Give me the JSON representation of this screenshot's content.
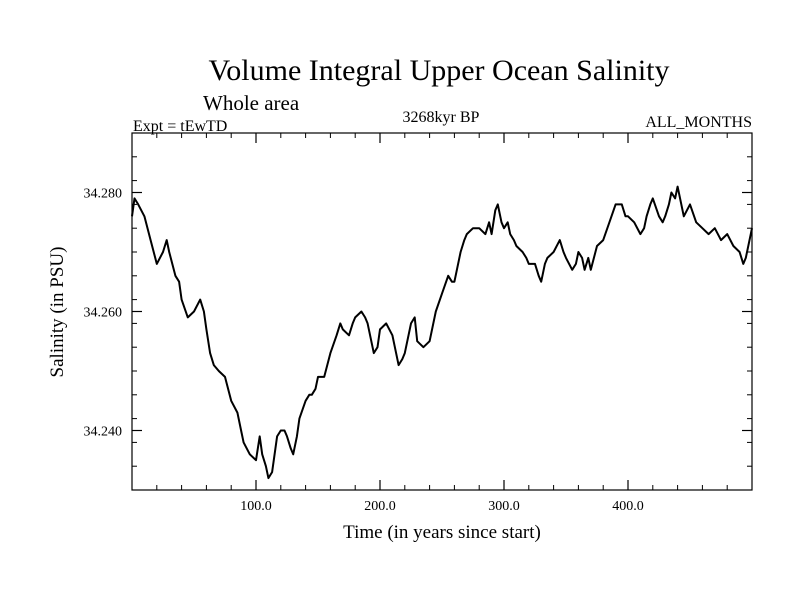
{
  "chart_data": {
    "type": "line",
    "title": "Volume Integral Upper Ocean Salinity",
    "subtitle": "Whole area",
    "expt_label": "Expt = tEwTD",
    "center_label": "3268kyr BP",
    "right_label": "ALL_MONTHS",
    "xlabel": "Time (in years since start)",
    "ylabel": "Salinity (in PSU)",
    "xlim": [
      0,
      500
    ],
    "ylim": [
      34.23,
      34.29
    ],
    "x_ticks": [
      {
        "value": 100,
        "label": "100.0"
      },
      {
        "value": 200,
        "label": "200.0"
      },
      {
        "value": 300,
        "label": "300.0"
      },
      {
        "value": 400,
        "label": "400.0"
      }
    ],
    "y_ticks": [
      {
        "value": 34.24,
        "label": "34.240"
      },
      {
        "value": 34.26,
        "label": "34.260"
      },
      {
        "value": 34.28,
        "label": "34.280"
      }
    ],
    "grid": false,
    "series": [
      {
        "name": "Salinity",
        "x": [
          0,
          2,
          5,
          10,
          15,
          20,
          25,
          28,
          30,
          35,
          38,
          40,
          45,
          50,
          55,
          58,
          60,
          63,
          66,
          70,
          75,
          80,
          85,
          88,
          90,
          95,
          100,
          103,
          105,
          108,
          110,
          113,
          115,
          117,
          120,
          123,
          125,
          128,
          130,
          133,
          135,
          140,
          143,
          145,
          148,
          150,
          155,
          160,
          165,
          168,
          170,
          175,
          178,
          180,
          185,
          188,
          190,
          195,
          198,
          200,
          205,
          210,
          213,
          215,
          218,
          220,
          225,
          228,
          230,
          235,
          240,
          245,
          250,
          255,
          258,
          260,
          265,
          268,
          270,
          275,
          280,
          285,
          288,
          290,
          293,
          295,
          298,
          300,
          303,
          305,
          308,
          310,
          315,
          318,
          320,
          325,
          328,
          330,
          333,
          335,
          340,
          345,
          348,
          350,
          355,
          358,
          360,
          363,
          365,
          368,
          370,
          375,
          380,
          385,
          390,
          395,
          398,
          400,
          405,
          410,
          413,
          415,
          418,
          420,
          425,
          428,
          430,
          433,
          435,
          438,
          440,
          445,
          450,
          455,
          460,
          465,
          470,
          475,
          480,
          485,
          490,
          493,
          495,
          500
        ],
        "values": [
          34.276,
          34.279,
          34.278,
          34.276,
          34.272,
          34.268,
          34.27,
          34.272,
          34.27,
          34.266,
          34.265,
          34.262,
          34.259,
          34.26,
          34.262,
          34.26,
          34.257,
          34.253,
          34.251,
          34.25,
          34.249,
          34.245,
          34.243,
          34.24,
          34.238,
          34.236,
          34.235,
          34.239,
          34.236,
          34.234,
          34.232,
          34.233,
          34.236,
          34.239,
          34.24,
          34.24,
          34.239,
          34.237,
          34.236,
          34.239,
          34.242,
          34.245,
          34.246,
          34.246,
          34.247,
          34.249,
          34.249,
          34.253,
          34.256,
          34.258,
          34.257,
          34.256,
          34.258,
          34.259,
          34.26,
          34.259,
          34.258,
          34.253,
          34.254,
          34.257,
          34.258,
          34.256,
          34.253,
          34.251,
          34.252,
          34.253,
          34.258,
          34.259,
          34.255,
          34.254,
          34.255,
          34.26,
          34.263,
          34.266,
          34.265,
          34.265,
          34.27,
          34.272,
          34.273,
          34.274,
          34.274,
          34.273,
          34.275,
          34.273,
          34.277,
          34.278,
          34.275,
          34.274,
          34.275,
          34.273,
          34.272,
          34.271,
          34.27,
          34.269,
          34.268,
          34.268,
          34.266,
          34.265,
          34.268,
          34.269,
          34.27,
          34.272,
          34.27,
          34.269,
          34.267,
          34.268,
          34.27,
          34.269,
          34.267,
          34.269,
          34.267,
          34.271,
          34.272,
          34.275,
          34.278,
          34.278,
          34.276,
          34.276,
          34.275,
          34.273,
          34.274,
          34.276,
          34.278,
          34.279,
          34.276,
          34.275,
          34.276,
          34.278,
          34.28,
          34.279,
          34.281,
          34.276,
          34.278,
          34.275,
          34.274,
          34.273,
          34.274,
          34.272,
          34.273,
          34.271,
          34.27,
          34.268,
          34.269,
          34.274
        ]
      }
    ]
  }
}
